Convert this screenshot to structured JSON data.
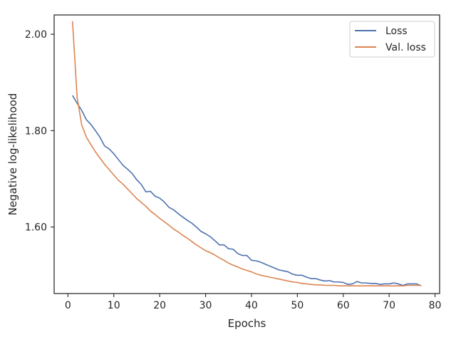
{
  "chart_data": {
    "type": "line",
    "title": "",
    "xlabel": "Epochs",
    "ylabel": "Negative log-likelihood",
    "xlim": [
      -3,
      81
    ],
    "ylim": [
      1.462,
      2.04
    ],
    "x_ticks": [
      0,
      10,
      20,
      30,
      40,
      50,
      60,
      70,
      80
    ],
    "x_tick_labels": [
      "0",
      "10",
      "20",
      "30",
      "40",
      "50",
      "60",
      "70",
      "80"
    ],
    "y_ticks": [
      1.6,
      1.8,
      2.0
    ],
    "y_tick_labels": [
      "1.60",
      "1.80",
      "2.00"
    ],
    "grid": false,
    "legend_position": "top-right",
    "series": [
      {
        "name": "Loss",
        "color": "#4c72b0",
        "x": [
          1,
          2,
          3,
          4,
          5,
          6,
          7,
          8,
          9,
          10,
          11,
          12,
          13,
          14,
          15,
          16,
          17,
          18,
          19,
          20,
          21,
          22,
          23,
          24,
          25,
          26,
          27,
          28,
          29,
          30,
          31,
          32,
          33,
          34,
          35,
          36,
          37,
          38,
          39,
          40,
          41,
          42,
          43,
          44,
          45,
          46,
          47,
          48,
          49,
          50,
          51,
          52,
          53,
          54,
          55,
          56,
          57,
          58,
          59,
          60,
          61,
          62,
          63,
          64,
          65,
          66,
          67,
          68,
          69,
          70,
          71,
          72,
          73,
          74,
          75,
          76,
          77
        ],
        "values": [
          1.873,
          1.857,
          1.842,
          1.823,
          1.813,
          1.8,
          1.786,
          1.768,
          1.762,
          1.752,
          1.74,
          1.728,
          1.72,
          1.711,
          1.698,
          1.688,
          1.673,
          1.674,
          1.664,
          1.66,
          1.652,
          1.641,
          1.636,
          1.628,
          1.621,
          1.614,
          1.608,
          1.6,
          1.591,
          1.586,
          1.58,
          1.572,
          1.563,
          1.563,
          1.555,
          1.554,
          1.545,
          1.541,
          1.541,
          1.531,
          1.53,
          1.527,
          1.523,
          1.519,
          1.515,
          1.511,
          1.509,
          1.507,
          1.502,
          1.5,
          1.5,
          1.496,
          1.493,
          1.493,
          1.49,
          1.488,
          1.489,
          1.486,
          1.486,
          1.485,
          1.481,
          1.482,
          1.487,
          1.484,
          1.484,
          1.483,
          1.483,
          1.481,
          1.482,
          1.482,
          1.484,
          1.482,
          1.479,
          1.482,
          1.482,
          1.482,
          1.478
        ]
      },
      {
        "name": "Val. loss",
        "color": "#dd8452",
        "x": [
          1,
          2,
          3,
          4,
          5,
          6,
          7,
          8,
          9,
          10,
          11,
          12,
          13,
          14,
          15,
          16,
          17,
          18,
          19,
          20,
          21,
          22,
          23,
          24,
          25,
          26,
          27,
          28,
          29,
          30,
          31,
          32,
          33,
          34,
          35,
          36,
          37,
          38,
          39,
          40,
          41,
          42,
          43,
          44,
          45,
          46,
          47,
          48,
          49,
          50,
          51,
          52,
          53,
          54,
          55,
          56,
          57,
          58,
          59,
          60,
          61,
          62,
          63,
          64,
          65,
          66,
          67,
          68,
          69,
          70,
          71,
          72,
          73,
          74,
          75,
          76,
          77
        ],
        "values": [
          2.027,
          1.87,
          1.812,
          1.787,
          1.771,
          1.756,
          1.743,
          1.73,
          1.719,
          1.708,
          1.697,
          1.689,
          1.679,
          1.669,
          1.659,
          1.651,
          1.643,
          1.633,
          1.626,
          1.618,
          1.611,
          1.604,
          1.596,
          1.59,
          1.583,
          1.577,
          1.57,
          1.563,
          1.557,
          1.551,
          1.547,
          1.542,
          1.536,
          1.531,
          1.525,
          1.521,
          1.517,
          1.513,
          1.51,
          1.507,
          1.503,
          1.5,
          1.498,
          1.496,
          1.494,
          1.492,
          1.49,
          1.488,
          1.486,
          1.485,
          1.483,
          1.482,
          1.481,
          1.48,
          1.48,
          1.479,
          1.479,
          1.479,
          1.478,
          1.478,
          1.478,
          1.478,
          1.478,
          1.478,
          1.478,
          1.478,
          1.478,
          1.478,
          1.478,
          1.478,
          1.478,
          1.478,
          1.478,
          1.479,
          1.479,
          1.479,
          1.479
        ]
      }
    ]
  }
}
